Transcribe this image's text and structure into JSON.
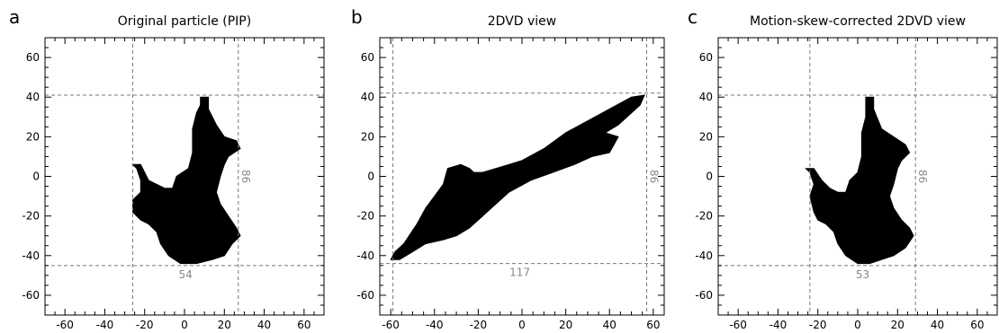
{
  "chart_data": [
    {
      "type": "scatter",
      "panel_letter": "a",
      "title": "Original particle (PIP)",
      "xlim": [
        -70,
        70
      ],
      "ylim": [
        -70,
        70
      ],
      "xticks": [
        -60,
        -40,
        -20,
        0,
        20,
        40,
        60
      ],
      "yticks": [
        -60,
        -40,
        -20,
        0,
        20,
        40,
        60
      ],
      "silhouette": [
        [
          8,
          40
        ],
        [
          12,
          40
        ],
        [
          12,
          34
        ],
        [
          16,
          26
        ],
        [
          20,
          20
        ],
        [
          26,
          18
        ],
        [
          28,
          14
        ],
        [
          22,
          10
        ],
        [
          20,
          6
        ],
        [
          18,
          0
        ],
        [
          16,
          -8
        ],
        [
          18,
          -14
        ],
        [
          22,
          -20
        ],
        [
          26,
          -26
        ],
        [
          28,
          -30
        ],
        [
          24,
          -34
        ],
        [
          20,
          -40
        ],
        [
          14,
          -42
        ],
        [
          6,
          -44
        ],
        [
          -2,
          -44
        ],
        [
          -8,
          -40
        ],
        [
          -12,
          -34
        ],
        [
          -14,
          -28
        ],
        [
          -18,
          -24
        ],
        [
          -22,
          -22
        ],
        [
          -26,
          -18
        ],
        [
          -26,
          -12
        ],
        [
          -22,
          -8
        ],
        [
          -22,
          -2
        ],
        [
          -24,
          4
        ],
        [
          -26,
          6
        ],
        [
          -22,
          6
        ],
        [
          -18,
          -2
        ],
        [
          -14,
          -4
        ],
        [
          -10,
          -6
        ],
        [
          -6,
          -6
        ],
        [
          -4,
          0
        ],
        [
          2,
          4
        ],
        [
          4,
          12
        ],
        [
          4,
          24
        ],
        [
          6,
          32
        ],
        [
          8,
          36
        ]
      ],
      "dashed_lines": {
        "x": [
          -26,
          27
        ],
        "y": [
          41,
          -45
        ]
      },
      "width_label": "54",
      "height_label": "86"
    },
    {
      "type": "scatter",
      "panel_letter": "b",
      "title": "2DVD view",
      "xlim": [
        -65,
        65
      ],
      "ylim": [
        -70,
        70
      ],
      "xticks": [
        -60,
        -40,
        -20,
        0,
        20,
        40,
        60
      ],
      "yticks": [
        -60,
        -40,
        -20,
        0,
        20,
        40,
        60
      ],
      "silhouette": [
        [
          56,
          41
        ],
        [
          50,
          40
        ],
        [
          40,
          34
        ],
        [
          30,
          28
        ],
        [
          20,
          22
        ],
        [
          10,
          14
        ],
        [
          0,
          8
        ],
        [
          -6,
          6
        ],
        [
          -12,
          4
        ],
        [
          -18,
          2
        ],
        [
          -22,
          2
        ],
        [
          -24,
          4
        ],
        [
          -28,
          6
        ],
        [
          -34,
          4
        ],
        [
          -36,
          -4
        ],
        [
          -40,
          -10
        ],
        [
          -44,
          -16
        ],
        [
          -48,
          -24
        ],
        [
          -54,
          -34
        ],
        [
          -58,
          -38
        ],
        [
          -60,
          -42
        ],
        [
          -56,
          -42
        ],
        [
          -50,
          -38
        ],
        [
          -44,
          -34
        ],
        [
          -36,
          -32
        ],
        [
          -30,
          -30
        ],
        [
          -24,
          -26
        ],
        [
          -20,
          -22
        ],
        [
          -14,
          -16
        ],
        [
          -6,
          -8
        ],
        [
          4,
          -2
        ],
        [
          14,
          2
        ],
        [
          24,
          6
        ],
        [
          32,
          10
        ],
        [
          40,
          12
        ],
        [
          44,
          20
        ],
        [
          38,
          22
        ],
        [
          44,
          26
        ],
        [
          50,
          32
        ],
        [
          54,
          36
        ]
      ],
      "dashed_lines": {
        "x": [
          -59,
          57
        ],
        "y": [
          42,
          -44
        ]
      },
      "width_label": "117",
      "height_label": "86"
    },
    {
      "type": "scatter",
      "panel_letter": "c",
      "title": "Motion-skew-corrected 2DVD view",
      "xlim": [
        -70,
        70
      ],
      "ylim": [
        -70,
        70
      ],
      "xticks": [
        -60,
        -40,
        -20,
        0,
        20,
        40,
        60
      ],
      "yticks": [
        -60,
        -40,
        -20,
        0,
        20,
        40,
        60
      ],
      "silhouette": [
        [
          4,
          40
        ],
        [
          8,
          40
        ],
        [
          8,
          34
        ],
        [
          12,
          24
        ],
        [
          18,
          20
        ],
        [
          24,
          16
        ],
        [
          26,
          12
        ],
        [
          22,
          8
        ],
        [
          20,
          4
        ],
        [
          18,
          -4
        ],
        [
          16,
          -10
        ],
        [
          18,
          -16
        ],
        [
          22,
          -22
        ],
        [
          26,
          -26
        ],
        [
          28,
          -30
        ],
        [
          24,
          -36
        ],
        [
          18,
          -40
        ],
        [
          12,
          -42
        ],
        [
          6,
          -44
        ],
        [
          0,
          -44
        ],
        [
          -6,
          -40
        ],
        [
          -10,
          -34
        ],
        [
          -12,
          -28
        ],
        [
          -16,
          -24
        ],
        [
          -20,
          -22
        ],
        [
          -22,
          -18
        ],
        [
          -24,
          -10
        ],
        [
          -22,
          -4
        ],
        [
          -24,
          2
        ],
        [
          -26,
          4
        ],
        [
          -22,
          4
        ],
        [
          -18,
          -2
        ],
        [
          -14,
          -6
        ],
        [
          -10,
          -8
        ],
        [
          -6,
          -8
        ],
        [
          -4,
          -2
        ],
        [
          0,
          2
        ],
        [
          2,
          10
        ],
        [
          2,
          22
        ],
        [
          4,
          30
        ]
      ],
      "dashed_lines": {
        "x": [
          -24,
          29
        ],
        "y": [
          41,
          -45
        ]
      },
      "width_label": "53",
      "height_label": "86"
    }
  ]
}
